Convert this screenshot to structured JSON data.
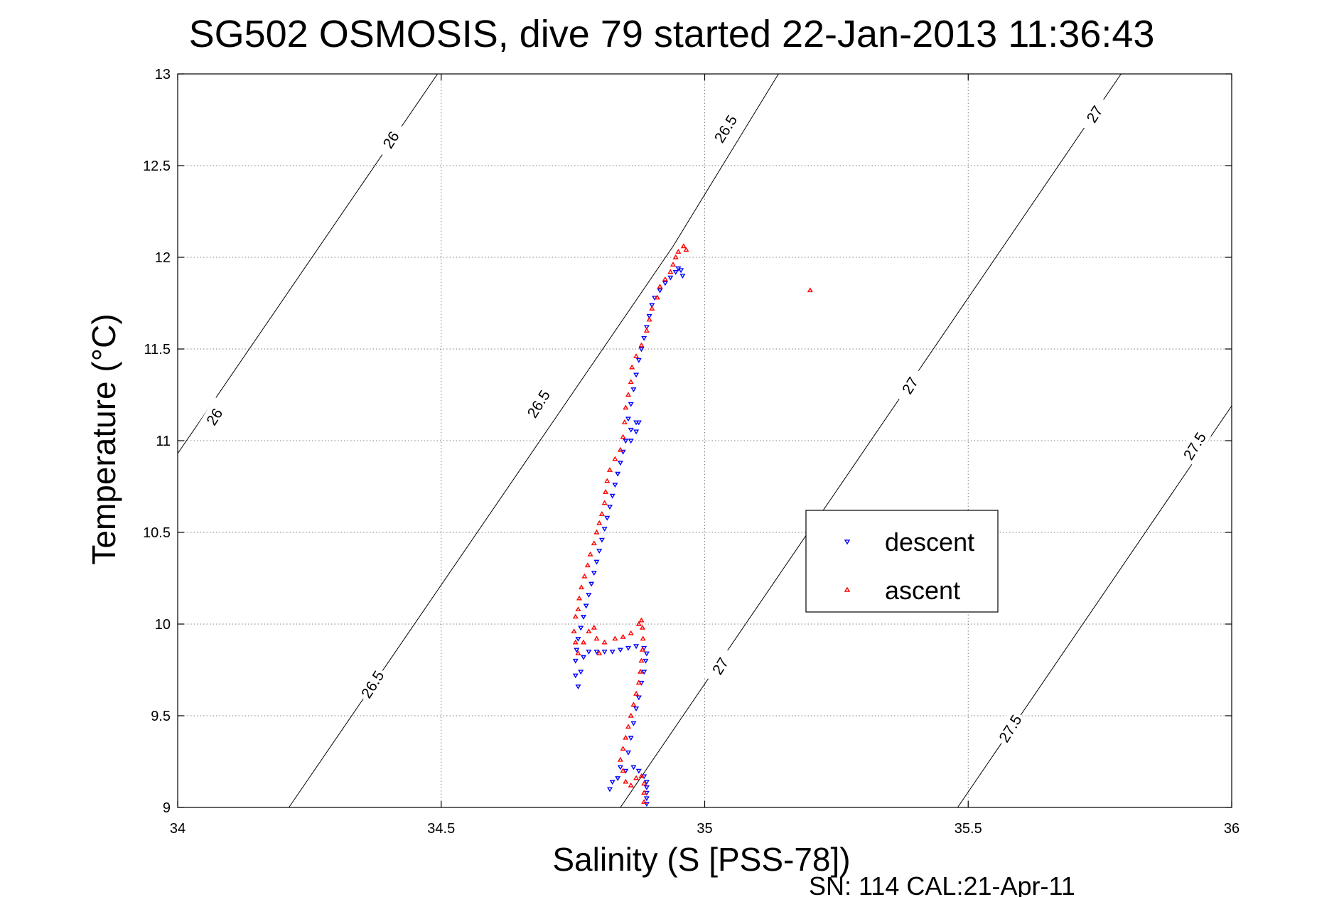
{
  "chart_data": {
    "type": "scatter",
    "title": "SG502 OSMOSIS, dive 79 started 22-Jan-2013 11:36:43",
    "xlabel": "Salinity (S [PSS-78])",
    "ylabel": "Temperature (°C)",
    "xlim": [
      34,
      36
    ],
    "ylim": [
      9,
      13
    ],
    "grid": true,
    "xticks": [
      "34",
      "34.5",
      "35",
      "35.5",
      "36"
    ],
    "yticks": [
      "9",
      "9.5",
      "10",
      "10.5",
      "11",
      "11.5",
      "12",
      "12.5",
      "13"
    ],
    "legend": {
      "placement": "center-right"
    },
    "series": [
      {
        "name": "descent",
        "marker": "triangle-down",
        "color": "#0000ff",
        "points": [
          [
            34.89,
            9.02
          ],
          [
            34.89,
            9.05
          ],
          [
            34.89,
            9.08
          ],
          [
            34.89,
            9.11
          ],
          [
            34.89,
            9.14
          ],
          [
            34.885,
            9.17
          ],
          [
            34.875,
            9.2
          ],
          [
            34.865,
            9.22
          ],
          [
            34.85,
            9.2
          ],
          [
            34.835,
            9.16
          ],
          [
            34.82,
            9.1
          ],
          [
            34.825,
            9.14
          ],
          [
            34.84,
            9.22
          ],
          [
            34.855,
            9.3
          ],
          [
            34.86,
            9.38
          ],
          [
            34.865,
            9.46
          ],
          [
            34.87,
            9.54
          ],
          [
            34.875,
            9.6
          ],
          [
            34.88,
            9.68
          ],
          [
            34.885,
            9.74
          ],
          [
            34.888,
            9.8
          ],
          [
            34.89,
            9.84
          ],
          [
            34.885,
            9.87
          ],
          [
            34.87,
            9.88
          ],
          [
            34.855,
            9.87
          ],
          [
            34.84,
            9.86
          ],
          [
            34.825,
            9.85
          ],
          [
            34.81,
            9.85
          ],
          [
            34.795,
            9.85
          ],
          [
            34.78,
            9.85
          ],
          [
            34.77,
            9.82
          ],
          [
            34.765,
            9.74
          ],
          [
            34.76,
            9.66
          ],
          [
            34.755,
            9.72
          ],
          [
            34.755,
            9.8
          ],
          [
            34.757,
            9.86
          ],
          [
            34.76,
            9.92
          ],
          [
            34.765,
            9.98
          ],
          [
            34.77,
            10.04
          ],
          [
            34.775,
            10.1
          ],
          [
            34.78,
            10.16
          ],
          [
            34.785,
            10.22
          ],
          [
            34.79,
            10.28
          ],
          [
            34.795,
            10.34
          ],
          [
            34.8,
            10.4
          ],
          [
            34.805,
            10.46
          ],
          [
            34.81,
            10.52
          ],
          [
            34.815,
            10.58
          ],
          [
            34.82,
            10.64
          ],
          [
            34.825,
            10.7
          ],
          [
            34.83,
            10.76
          ],
          [
            34.835,
            10.82
          ],
          [
            34.84,
            10.88
          ],
          [
            34.845,
            10.94
          ],
          [
            34.85,
            11.0
          ],
          [
            34.86,
            11.06
          ],
          [
            34.87,
            11.1
          ],
          [
            34.875,
            11.1
          ],
          [
            34.87,
            11.05
          ],
          [
            34.86,
            11.0
          ],
          [
            34.855,
            11.12
          ],
          [
            34.86,
            11.2
          ],
          [
            34.865,
            11.28
          ],
          [
            34.87,
            11.36
          ],
          [
            34.875,
            11.44
          ],
          [
            34.88,
            11.5
          ],
          [
            34.885,
            11.56
          ],
          [
            34.89,
            11.62
          ],
          [
            34.895,
            11.68
          ],
          [
            34.9,
            11.74
          ],
          [
            34.905,
            11.78
          ],
          [
            34.915,
            11.82
          ],
          [
            34.925,
            11.86
          ],
          [
            34.935,
            11.89
          ],
          [
            34.945,
            11.92
          ],
          [
            34.95,
            11.94
          ],
          [
            34.955,
            11.93
          ],
          [
            34.958,
            11.9
          ]
        ]
      },
      {
        "name": "ascent",
        "marker": "triangle-up",
        "color": "#ff0000",
        "points": [
          [
            34.885,
            9.03
          ],
          [
            34.885,
            9.08
          ],
          [
            34.885,
            9.13
          ],
          [
            34.88,
            9.17
          ],
          [
            34.87,
            9.16
          ],
          [
            34.86,
            9.12
          ],
          [
            34.85,
            9.14
          ],
          [
            34.845,
            9.2
          ],
          [
            34.84,
            9.26
          ],
          [
            34.845,
            9.32
          ],
          [
            34.85,
            9.38
          ],
          [
            34.855,
            9.44
          ],
          [
            34.86,
            9.5
          ],
          [
            34.865,
            9.56
          ],
          [
            34.87,
            9.62
          ],
          [
            34.875,
            9.68
          ],
          [
            34.878,
            9.74
          ],
          [
            34.88,
            9.8
          ],
          [
            34.882,
            9.86
          ],
          [
            34.883,
            9.92
          ],
          [
            34.882,
            9.98
          ],
          [
            34.88,
            10.02
          ],
          [
            34.875,
            10.0
          ],
          [
            34.86,
            9.95
          ],
          [
            34.845,
            9.93
          ],
          [
            34.83,
            9.92
          ],
          [
            34.81,
            9.9
          ],
          [
            34.8,
            9.84
          ],
          [
            34.795,
            9.92
          ],
          [
            34.79,
            9.98
          ],
          [
            34.78,
            9.96
          ],
          [
            34.77,
            9.9
          ],
          [
            34.76,
            9.84
          ],
          [
            34.755,
            9.9
          ],
          [
            34.752,
            9.96
          ],
          [
            34.755,
            10.04
          ],
          [
            34.76,
            10.08
          ],
          [
            34.762,
            10.14
          ],
          [
            34.766,
            10.2
          ],
          [
            34.772,
            10.26
          ],
          [
            34.778,
            10.32
          ],
          [
            34.783,
            10.38
          ],
          [
            34.79,
            10.44
          ],
          [
            34.795,
            10.5
          ],
          [
            34.8,
            10.55
          ],
          [
            34.805,
            10.6
          ],
          [
            34.81,
            10.66
          ],
          [
            34.812,
            10.72
          ],
          [
            34.815,
            10.78
          ],
          [
            34.82,
            10.84
          ],
          [
            34.83,
            10.9
          ],
          [
            34.84,
            10.95
          ],
          [
            34.845,
            11.02
          ],
          [
            34.848,
            11.1
          ],
          [
            34.85,
            11.18
          ],
          [
            34.855,
            11.25
          ],
          [
            34.86,
            11.32
          ],
          [
            34.862,
            11.4
          ],
          [
            34.87,
            11.46
          ],
          [
            34.88,
            11.52
          ],
          [
            34.89,
            11.6
          ],
          [
            34.895,
            11.66
          ],
          [
            34.9,
            11.72
          ],
          [
            34.91,
            11.78
          ],
          [
            34.915,
            11.84
          ],
          [
            34.925,
            11.88
          ],
          [
            34.935,
            11.92
          ],
          [
            34.94,
            11.96
          ],
          [
            34.945,
            12.0
          ],
          [
            34.95,
            12.03
          ],
          [
            34.96,
            12.06
          ],
          [
            34.965,
            12.04
          ],
          [
            35.2,
            11.82
          ]
        ]
      }
    ],
    "density_contours": [
      {
        "label": "26",
        "segments": [
          [
            34.0,
            10.93
          ],
          [
            34.493,
            13.0
          ]
        ]
      },
      {
        "label": "26.5",
        "segments": [
          [
            34.211,
            9.0
          ],
          [
            34.94,
            12.06
          ],
          [
            35.14,
            13.0
          ]
        ]
      },
      {
        "label": "27",
        "segments": [
          [
            34.84,
            9.0
          ],
          [
            35.79,
            13.0
          ]
        ]
      },
      {
        "label": "27.5",
        "segments": [
          [
            35.48,
            9.0
          ],
          [
            36.0,
            11.19
          ]
        ]
      }
    ],
    "contour_labels": [
      {
        "text": "26",
        "at": [
          34.07,
          11.13
        ]
      },
      {
        "text": "26",
        "at": [
          34.405,
          12.64
        ]
      },
      {
        "text": "26.5",
        "at": [
          34.37,
          9.67
        ]
      },
      {
        "text": "26.5",
        "at": [
          34.685,
          11.2
        ]
      },
      {
        "text": "26.5",
        "at": [
          35.04,
          12.7
        ]
      },
      {
        "text": "27",
        "at": [
          35.03,
          9.77
        ]
      },
      {
        "text": "27",
        "at": [
          35.39,
          11.3
        ]
      },
      {
        "text": "27",
        "at": [
          35.74,
          12.78
        ]
      },
      {
        "text": "27.5",
        "at": [
          35.58,
          9.43
        ]
      },
      {
        "text": "27.5",
        "at": [
          35.93,
          10.97
        ]
      }
    ]
  },
  "footer": {
    "text": "SN: 114  CAL:21-Apr-11"
  }
}
